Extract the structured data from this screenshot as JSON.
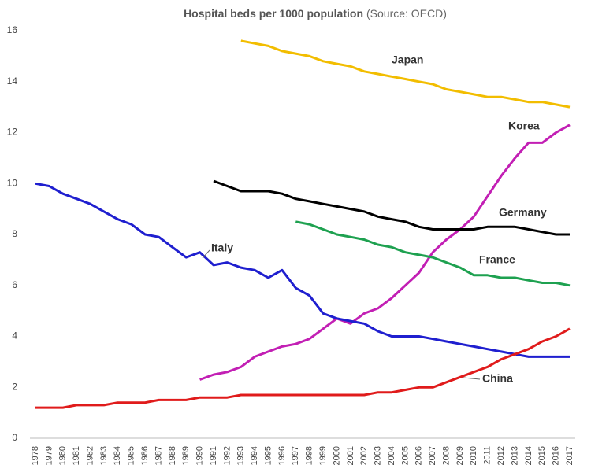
{
  "chart_data": {
    "type": "line",
    "title": "Hospital beds per 1000 population",
    "source": "(Source: OECD)",
    "categories": [
      "1978",
      "1979",
      "1980",
      "1981",
      "1982",
      "1983",
      "1984",
      "1985",
      "1986",
      "1987",
      "1988",
      "1989",
      "1990",
      "1991",
      "1992",
      "1993",
      "1994",
      "1995",
      "1996",
      "1997",
      "1998",
      "1999",
      "2000",
      "2001",
      "2002",
      "2003",
      "2004",
      "2005",
      "2006",
      "2007",
      "2008",
      "2009",
      "2010",
      "2011",
      "2012",
      "2013",
      "2014",
      "2015",
      "2016",
      "2017"
    ],
    "ylim": [
      0,
      16
    ],
    "yticks": [
      0,
      2,
      4,
      6,
      8,
      10,
      12,
      14,
      16
    ],
    "grid": false,
    "series": [
      {
        "name": "Japan",
        "color": "#f2bd00",
        "values": [
          null,
          null,
          null,
          null,
          null,
          null,
          null,
          null,
          null,
          null,
          null,
          null,
          null,
          null,
          null,
          15.6,
          15.5,
          15.4,
          15.2,
          15.1,
          15.0,
          14.8,
          14.7,
          14.6,
          14.4,
          14.3,
          14.2,
          14.1,
          14.0,
          13.9,
          13.7,
          13.6,
          13.5,
          13.4,
          13.4,
          13.3,
          13.2,
          13.2,
          13.1,
          13.0
        ]
      },
      {
        "name": "Korea",
        "color": "#c21fb4",
        "values": [
          null,
          null,
          null,
          null,
          null,
          null,
          null,
          null,
          null,
          null,
          null,
          null,
          2.3,
          2.5,
          2.6,
          2.8,
          3.2,
          3.4,
          3.6,
          3.7,
          3.9,
          4.3,
          4.7,
          4.5,
          4.9,
          5.1,
          5.5,
          6.0,
          6.5,
          7.3,
          7.8,
          8.2,
          8.7,
          9.5,
          10.3,
          11.0,
          11.6,
          11.6,
          12.0,
          12.3
        ]
      },
      {
        "name": "Germany",
        "color": "#000000",
        "values": [
          null,
          null,
          null,
          null,
          null,
          null,
          null,
          null,
          null,
          null,
          null,
          null,
          null,
          10.1,
          9.9,
          9.7,
          9.7,
          9.7,
          9.6,
          9.4,
          9.3,
          9.2,
          9.1,
          9.0,
          8.9,
          8.7,
          8.6,
          8.5,
          8.3,
          8.2,
          8.2,
          8.2,
          8.2,
          8.3,
          8.3,
          8.3,
          8.2,
          8.1,
          8.0,
          8.0
        ]
      },
      {
        "name": "France",
        "color": "#1ea150",
        "values": [
          null,
          null,
          null,
          null,
          null,
          null,
          null,
          null,
          null,
          null,
          null,
          null,
          null,
          null,
          null,
          null,
          null,
          null,
          null,
          8.5,
          8.4,
          8.2,
          8.0,
          7.9,
          7.8,
          7.6,
          7.5,
          7.3,
          7.2,
          7.1,
          6.9,
          6.7,
          6.4,
          6.4,
          6.3,
          6.3,
          6.2,
          6.1,
          6.1,
          6.0
        ]
      },
      {
        "name": "Italy",
        "color": "#1f1fcf",
        "values": [
          10.0,
          9.9,
          9.6,
          9.4,
          9.2,
          8.9,
          8.6,
          8.4,
          8.0,
          7.9,
          7.5,
          7.1,
          7.3,
          6.8,
          6.9,
          6.7,
          6.6,
          6.3,
          6.6,
          5.9,
          5.6,
          4.9,
          4.7,
          4.6,
          4.5,
          4.2,
          4.0,
          4.0,
          4.0,
          3.9,
          3.8,
          3.7,
          3.6,
          3.5,
          3.4,
          3.3,
          3.2,
          3.2,
          3.2,
          3.2
        ]
      },
      {
        "name": "China",
        "color": "#e01b1b",
        "values": [
          1.2,
          1.2,
          1.2,
          1.3,
          1.3,
          1.3,
          1.4,
          1.4,
          1.4,
          1.5,
          1.5,
          1.5,
          1.6,
          1.6,
          1.6,
          1.7,
          1.7,
          1.7,
          1.7,
          1.7,
          1.7,
          1.7,
          1.7,
          1.7,
          1.7,
          1.8,
          1.8,
          1.9,
          2.0,
          2.0,
          2.2,
          2.4,
          2.6,
          2.8,
          3.1,
          3.3,
          3.5,
          3.8,
          4.0,
          4.3
        ]
      }
    ]
  }
}
